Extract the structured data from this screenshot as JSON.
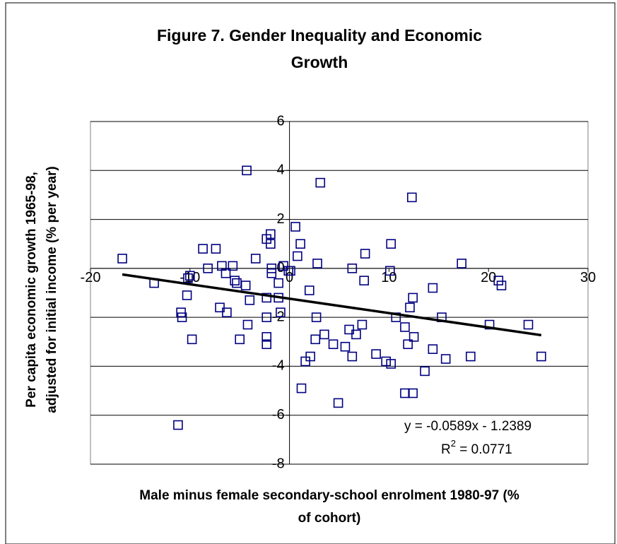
{
  "chart_data": {
    "type": "scatter",
    "title": [
      "Figure 7. Gender Inequality and Economic",
      "Growth"
    ],
    "x_label": [
      "Male minus female secondary-school enrolment 1980-97 (%",
      "of cohort)"
    ],
    "y_label": [
      "Per capita economic growth 1965-98,",
      "adjusted for initial income (% per year)"
    ],
    "color": "#000080",
    "x": [
      -16.8,
      -13.6,
      -10.2,
      -10.0,
      -10.3,
      -10.9,
      -10.8,
      -9.8,
      -11.2,
      -8.7,
      -8.2,
      -7.4,
      -6.8,
      -6.4,
      -7.0,
      -6.3,
      -5.7,
      -5.5,
      -5.3,
      -4.4,
      -4.0,
      -4.2,
      -5.0,
      -4.3,
      -3.4,
      -2.3,
      -1.9,
      -1.9,
      -1.8,
      -1.8,
      -2.3,
      -2.3,
      -2.3,
      -2.3,
      -1.1,
      -1.1,
      -0.9,
      -0.6,
      -0.1,
      0.1,
      0.6,
      1.1,
      0.8,
      1.2,
      1.6,
      2.1,
      2.0,
      2.6,
      2.7,
      2.8,
      3.1,
      3.5,
      4.4,
      4.9,
      5.6,
      6.0,
      6.3,
      6.3,
      6.7,
      7.3,
      7.5,
      7.6,
      8.7,
      9.7,
      10.2,
      10.1,
      10.2,
      10.7,
      11.6,
      11.9,
      12.1,
      11.6,
      12.4,
      12.4,
      12.5,
      12.3,
      13.6,
      14.4,
      14.4,
      15.3,
      15.7,
      17.3,
      18.2,
      21.0,
      21.3,
      20.1,
      24.0,
      25.3
    ],
    "values": [
      0.4,
      -0.6,
      -0.4,
      -0.3,
      -1.1,
      -1.8,
      -2.0,
      -2.9,
      -6.4,
      0.8,
      0.0,
      0.8,
      0.1,
      -0.2,
      -1.6,
      -1.8,
      0.1,
      -0.5,
      -0.6,
      -0.7,
      -1.3,
      -2.3,
      -2.9,
      4.0,
      0.4,
      1.2,
      1.4,
      1.0,
      0.0,
      -0.2,
      -1.2,
      -2.0,
      -3.1,
      -2.8,
      -0.6,
      -1.2,
      -1.8,
      0.1,
      -0.1,
      -0.1,
      1.7,
      1.0,
      0.5,
      -4.9,
      -3.8,
      -3.6,
      -0.9,
      -2.9,
      -2.0,
      0.2,
      3.5,
      -2.7,
      -3.1,
      -5.5,
      -3.2,
      -2.5,
      0.0,
      -3.6,
      -2.7,
      -2.3,
      -0.5,
      0.6,
      -3.5,
      -3.8,
      -3.9,
      -0.1,
      1.0,
      -2.0,
      -2.4,
      -3.1,
      -1.6,
      -5.1,
      -5.1,
      -1.2,
      -2.8,
      2.9,
      -4.2,
      -0.8,
      -3.3,
      -2.0,
      -3.7,
      0.2,
      -3.6,
      -0.5,
      -0.7,
      -2.3,
      -2.3,
      -3.6
    ],
    "trendline": {
      "slope": -0.0589,
      "intercept": -1.2389,
      "xrange": [
        -16.8,
        25.3
      ],
      "color": "#000000",
      "equation": "y = -0.0589x - 1.2389",
      "r2_base": "R",
      "r2_sup": "2",
      "r2_rest": " = 0.0771"
    },
    "xlim": [
      -20,
      30
    ],
    "xticks": [
      -20,
      -10,
      0,
      10,
      20,
      30
    ],
    "ylim": [
      -8,
      6
    ],
    "yticks": [
      6,
      4,
      2,
      0,
      -2,
      -4,
      -6,
      -8
    ],
    "grid": true
  }
}
